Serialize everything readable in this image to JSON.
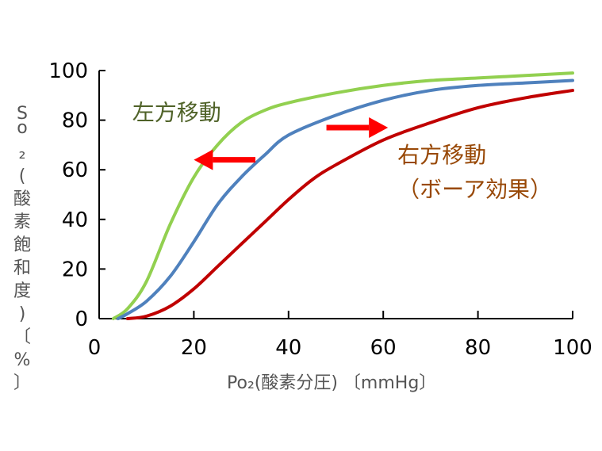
{
  "chart_data": {
    "type": "line",
    "xlabel": "Po₂(酸素分圧) 〔mmHg〕",
    "ylabel": "So₂(酸素飽和度)〔%〕",
    "xlim": [
      0,
      100
    ],
    "ylim": [
      0,
      100
    ],
    "x_ticks": [
      "0",
      "20",
      "40",
      "60",
      "80",
      "100"
    ],
    "y_ticks": [
      "0",
      "20",
      "40",
      "60",
      "80",
      "100"
    ],
    "grid": false,
    "colors": {
      "left_shift": "#92d050",
      "normal": "#4f81bd",
      "right_shift": "#c00000",
      "arrow": "#ff0000",
      "left_label": "#4f6228",
      "right_label": "#984806"
    },
    "series": [
      {
        "key": "left_shift",
        "x": [
          3,
          6,
          10,
          15,
          20,
          25,
          30,
          35,
          40,
          50,
          60,
          70,
          80,
          90,
          100
        ],
        "y": [
          0,
          4,
          15,
          38,
          57,
          70,
          79,
          84,
          87,
          91,
          94,
          96,
          97,
          98,
          99
        ]
      },
      {
        "key": "normal",
        "x": [
          4,
          6,
          10,
          15,
          20,
          25,
          30,
          35,
          40,
          50,
          60,
          70,
          80,
          90,
          100
        ],
        "y": [
          0,
          2,
          7,
          17,
          31,
          46,
          57,
          66,
          74,
          82,
          88,
          92,
          94,
          95,
          96
        ]
      },
      {
        "key": "right_shift",
        "x": [
          6,
          10,
          15,
          20,
          25,
          30,
          35,
          40,
          45,
          50,
          60,
          70,
          80,
          90,
          100
        ],
        "y": [
          0,
          1,
          5,
          12,
          21,
          30,
          39,
          48,
          56,
          62,
          72,
          79,
          85,
          89,
          92
        ]
      }
    ],
    "annotations": [
      {
        "key": "left",
        "text": "左方移動",
        "color": "#4f6228",
        "x": 7,
        "y": 80
      },
      {
        "key": "right",
        "text": "右方移動",
        "color": "#984806",
        "x": 63,
        "y": 63
      },
      {
        "key": "bohr",
        "text": "（ボーア効果）",
        "color": "#984806",
        "x": 63,
        "y": 49
      }
    ],
    "arrows": [
      {
        "key": "left-arrow",
        "direction": "left",
        "from": [
          33,
          64
        ],
        "to": [
          20,
          64
        ]
      },
      {
        "key": "right-arrow",
        "direction": "right",
        "from": [
          48,
          77
        ],
        "to": [
          61,
          77
        ]
      }
    ]
  }
}
